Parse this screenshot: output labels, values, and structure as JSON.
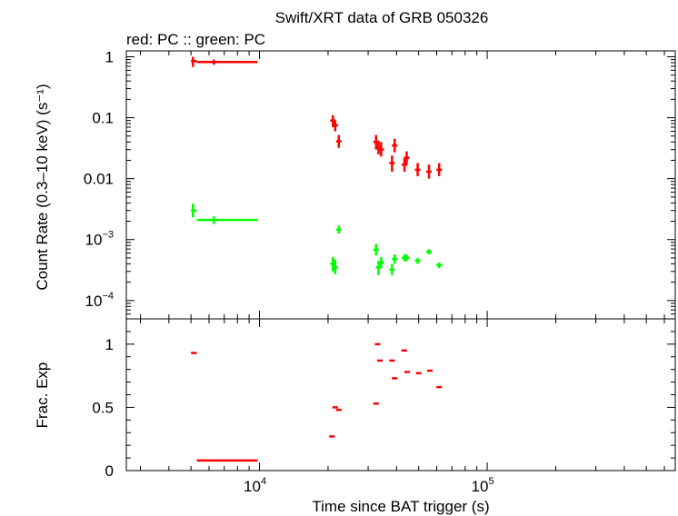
{
  "chart_data": [
    {
      "type": "scatter",
      "panel": "top",
      "title": "Swift/XRT data of GRB 050326",
      "subtitle": "red: PC  :: green: PC",
      "xlabel": "",
      "ylabel": "Count Rate (0.3–10 keV) (s⁻¹)",
      "xscale": "log",
      "yscale": "log",
      "xlim": [
        2600,
        670000
      ],
      "ylim": [
        5e-05,
        1.25
      ],
      "y_tick_labels": [
        "1",
        "0.1",
        "0.01",
        "10⁻³",
        "10⁻⁴"
      ],
      "series": [
        {
          "name": "PC",
          "color": "#ff0000",
          "points": [
            {
              "x": 5100,
              "y": 0.85,
              "xerr": [
                5000,
                5300
              ],
              "yerr": [
                0.68,
                1.0
              ]
            },
            {
              "x": 6300,
              "y": 0.82,
              "xerr": [
                5300,
                9800
              ],
              "yerr": [
                0.74,
                0.9
              ]
            },
            {
              "x": 21000,
              "y": 0.09,
              "yerr": [
                0.07,
                0.11
              ]
            },
            {
              "x": 21500,
              "y": 0.075,
              "yerr": [
                0.06,
                0.09
              ]
            },
            {
              "x": 22300,
              "y": 0.041,
              "yerr": [
                0.032,
                0.052
              ]
            },
            {
              "x": 32500,
              "y": 0.04,
              "yerr": [
                0.03,
                0.052
              ]
            },
            {
              "x": 33300,
              "y": 0.032,
              "yerr": [
                0.025,
                0.042
              ]
            },
            {
              "x": 34200,
              "y": 0.03,
              "yerr": [
                0.023,
                0.04
              ]
            },
            {
              "x": 38200,
              "y": 0.018,
              "yerr": [
                0.013,
                0.024
              ]
            },
            {
              "x": 39200,
              "y": 0.035,
              "yerr": [
                0.027,
                0.045
              ]
            },
            {
              "x": 43300,
              "y": 0.017,
              "yerr": [
                0.013,
                0.022
              ]
            },
            {
              "x": 44300,
              "y": 0.022,
              "yerr": [
                0.017,
                0.028
              ]
            },
            {
              "x": 49500,
              "y": 0.014,
              "yerr": [
                0.011,
                0.018
              ]
            },
            {
              "x": 55500,
              "y": 0.013,
              "yerr": [
                0.01,
                0.017
              ]
            },
            {
              "x": 61500,
              "y": 0.014,
              "yerr": [
                0.011,
                0.018
              ]
            }
          ]
        },
        {
          "name": "PC",
          "color": "#00ff00",
          "points": [
            {
              "x": 5100,
              "y": 0.003,
              "xerr": [
                5000,
                5300
              ],
              "yerr": [
                0.0023,
                0.0039
              ]
            },
            {
              "x": 6300,
              "y": 0.0021,
              "xerr": [
                5300,
                9800
              ],
              "yerr": [
                0.0018,
                0.0024
              ]
            },
            {
              "x": 21000,
              "y": 0.0004,
              "yerr": [
                0.0003,
                0.00052
              ]
            },
            {
              "x": 21500,
              "y": 0.00035,
              "yerr": [
                0.00027,
                0.00047
              ]
            },
            {
              "x": 22300,
              "y": 0.00145,
              "yerr": [
                0.00125,
                0.0017
              ]
            },
            {
              "x": 32500,
              "y": 0.00068,
              "yerr": [
                0.00055,
                0.00085
              ]
            },
            {
              "x": 33300,
              "y": 0.00035,
              "yerr": [
                0.00026,
                0.00045
              ]
            },
            {
              "x": 34200,
              "y": 0.00042,
              "yerr": [
                0.00034,
                0.00052
              ]
            },
            {
              "x": 38200,
              "y": 0.00032,
              "yerr": [
                0.00026,
                0.0004
              ]
            },
            {
              "x": 39200,
              "y": 0.00048,
              "yerr": [
                0.0004,
                0.00057
              ]
            },
            {
              "x": 43300,
              "y": 0.0005,
              "yerr": [
                0.00044,
                0.00057
              ]
            },
            {
              "x": 44300,
              "y": 0.0005,
              "yerr": [
                0.00044,
                0.00057
              ]
            },
            {
              "x": 49500,
              "y": 0.00045,
              "yerr": [
                0.0004,
                0.0005
              ]
            },
            {
              "x": 55500,
              "y": 0.00063,
              "yerr": [
                0.00057,
                0.0007
              ]
            },
            {
              "x": 61500,
              "y": 0.00038,
              "yerr": [
                0.00034,
                0.00042
              ]
            }
          ]
        }
      ]
    },
    {
      "type": "scatter",
      "panel": "bottom",
      "xlabel": "Time since BAT trigger (s)",
      "ylabel": "Frac. Exp",
      "xscale": "log",
      "yscale": "linear",
      "xlim": [
        2600,
        670000
      ],
      "ylim": [
        0,
        1.2
      ],
      "x_ticks": [
        10000,
        100000
      ],
      "y_ticks": [
        0,
        0.5,
        1
      ],
      "y_tick_labels": [
        "0",
        "0.5",
        "1"
      ],
      "series": [
        {
          "color": "#ff0000",
          "points": [
            {
              "x": 5100,
              "xerr": [
                5000,
                5300
              ],
              "y": 0.93
            },
            {
              "x": 7200,
              "xerr": [
                5300,
                9800
              ],
              "y": 0.08
            },
            {
              "x": 20800,
              "y": 0.27
            },
            {
              "x": 21500,
              "y": 0.5
            },
            {
              "x": 22300,
              "y": 0.48
            },
            {
              "x": 32500,
              "y": 0.53
            },
            {
              "x": 33000,
              "y": 1.0
            },
            {
              "x": 33800,
              "y": 0.87
            },
            {
              "x": 38200,
              "y": 0.87
            },
            {
              "x": 39200,
              "y": 0.73
            },
            {
              "x": 43200,
              "y": 0.95
            },
            {
              "x": 44500,
              "y": 0.78
            },
            {
              "x": 50000,
              "y": 0.77
            },
            {
              "x": 56000,
              "y": 0.79
            },
            {
              "x": 61500,
              "y": 0.66
            }
          ]
        }
      ]
    }
  ]
}
